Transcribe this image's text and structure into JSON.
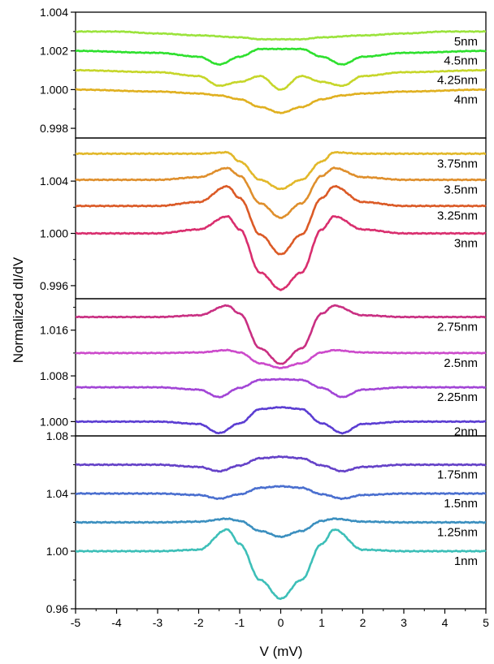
{
  "chart_data": {
    "type": "line",
    "xlabel": "V (mV)",
    "ylabel": "Normalized dI/dV",
    "xlim": [
      -5,
      5
    ],
    "xticks": [
      "-5",
      "-4",
      "-3",
      "-2",
      "-1",
      "0",
      "1",
      "2",
      "3",
      "4",
      "5"
    ],
    "panels": [
      {
        "ylim": [
          0.9975,
          1.004
        ],
        "yticks": [
          "0.998",
          "1.000",
          "1.002",
          "1.004"
        ],
        "series": [
          {
            "name": "5nm",
            "color": "#9be33c",
            "offset": 1.003,
            "x": [
              -5,
              -4,
              -3,
              -2,
              -1,
              -0.5,
              0,
              0.5,
              1,
              2,
              3,
              4,
              5
            ],
            "dy": [
              0,
              0,
              -0.0001,
              -0.0002,
              -0.0003,
              -0.0004,
              -0.0004,
              -0.0004,
              -0.0003,
              -0.0002,
              -0.0001,
              0,
              0
            ]
          },
          {
            "name": "4.5nm",
            "color": "#2ee02e",
            "offset": 1.002,
            "x": [
              -5,
              -3,
              -2,
              -1.5,
              -1,
              -0.5,
              0,
              0.5,
              1,
              1.5,
              2,
              3,
              5
            ],
            "dy": [
              0,
              -0.0001,
              -0.0003,
              -0.0007,
              -0.0003,
              0.0001,
              0.0001,
              0.0001,
              -0.0003,
              -0.0007,
              -0.0003,
              -0.0001,
              0
            ]
          },
          {
            "name": "4.25nm",
            "color": "#c6d62a",
            "offset": 1.001,
            "x": [
              -5,
              -3,
              -2,
              -1.5,
              -1,
              -0.5,
              0,
              0.5,
              1,
              1.5,
              2,
              3,
              5
            ],
            "dy": [
              0,
              -0.0001,
              -0.0003,
              -0.0008,
              -0.0006,
              -0.0003,
              -0.001,
              -0.0003,
              -0.0006,
              -0.0008,
              -0.0003,
              -0.0001,
              0
            ]
          },
          {
            "name": "4nm",
            "color": "#e0b020",
            "offset": 1.0,
            "x": [
              -5,
              -3,
              -2,
              -1.5,
              -1,
              -0.5,
              0,
              0.5,
              1,
              1.5,
              2,
              3,
              5
            ],
            "dy": [
              0,
              -0.0001,
              -0.0002,
              -0.0003,
              -0.0005,
              -0.0009,
              -0.0012,
              -0.0009,
              -0.0005,
              -0.0003,
              -0.0002,
              -0.0001,
              0
            ]
          }
        ]
      },
      {
        "ylim": [
          0.995,
          1.0073
        ],
        "yticks": [
          "0.996",
          "1.000",
          "1.004"
        ],
        "series": [
          {
            "name": "3.75nm",
            "color": "#e2b82a",
            "offset": 1.0061,
            "x": [
              -5,
              -3,
              -2,
              -1.3,
              -1,
              -0.5,
              0,
              0.5,
              1,
              1.3,
              2,
              3,
              5
            ],
            "dy": [
              0,
              0,
              0,
              0.0001,
              -0.0006,
              -0.002,
              -0.0027,
              -0.002,
              -0.0006,
              0.0001,
              0,
              0,
              0
            ]
          },
          {
            "name": "3.5nm",
            "color": "#df8f2c",
            "offset": 1.0041,
            "x": [
              -5,
              -3,
              -2,
              -1.3,
              -1,
              -0.5,
              0,
              0.5,
              1,
              1.3,
              2,
              3,
              5
            ],
            "dy": [
              0,
              0,
              0.0002,
              0.0009,
              0.0003,
              -0.0018,
              -0.0029,
              -0.0018,
              0.0003,
              0.0009,
              0.0002,
              0,
              0
            ]
          },
          {
            "name": "3.25nm",
            "color": "#db5a26",
            "offset": 1.0021,
            "x": [
              -5,
              -3,
              -2,
              -1.3,
              -1,
              -0.5,
              0,
              0.5,
              1,
              1.3,
              2,
              3,
              5
            ],
            "dy": [
              0,
              0,
              0.0003,
              0.0015,
              0.0006,
              -0.0022,
              -0.0037,
              -0.0022,
              0.0006,
              0.0015,
              0.0003,
              0,
              0
            ]
          },
          {
            "name": "3nm",
            "color": "#d92e6e",
            "offset": 1.0,
            "x": [
              -5,
              -3,
              -2,
              -1.3,
              -1,
              -0.5,
              0,
              0.5,
              1,
              1.3,
              2,
              3,
              5
            ],
            "dy": [
              0,
              0,
              0.0003,
              0.0013,
              0.0003,
              -0.003,
              -0.0043,
              -0.003,
              0.0003,
              0.0013,
              0.0003,
              0,
              0
            ]
          }
        ]
      },
      {
        "ylim": [
          0.9975,
          1.0215
        ],
        "yticks": [
          "1.000",
          "1.008",
          "1.016"
        ],
        "series": [
          {
            "name": "2.75nm",
            "color": "#c92f82",
            "offset": 1.0183,
            "x": [
              -5,
              -3,
              -2,
              -1.3,
              -1,
              -0.5,
              0,
              0.5,
              1,
              1.3,
              2,
              3,
              5
            ],
            "dy": [
              0,
              0,
              0.0003,
              0.002,
              0.0006,
              -0.0055,
              -0.0082,
              -0.0055,
              0.0006,
              0.002,
              0.0003,
              0,
              0
            ]
          },
          {
            "name": "2.5nm",
            "color": "#cc4acb",
            "offset": 1.012,
            "x": [
              -5,
              -3,
              -2,
              -1.3,
              -1,
              -0.5,
              0,
              0.5,
              1,
              1.3,
              2,
              3,
              5
            ],
            "dy": [
              0,
              0,
              0.0001,
              0.0005,
              0.0001,
              -0.0018,
              -0.0026,
              -0.0018,
              0.0001,
              0.0005,
              0.0001,
              0,
              0
            ]
          },
          {
            "name": "2.25nm",
            "color": "#a245d6",
            "offset": 1.006,
            "x": [
              -5,
              -3,
              -2,
              -1.5,
              -1,
              -0.5,
              0,
              0.5,
              1,
              1.5,
              2,
              3,
              5
            ],
            "dy": [
              0,
              0,
              -0.0004,
              -0.0017,
              -0.0001,
              0.0013,
              0.0014,
              0.0013,
              -0.0001,
              -0.0017,
              -0.0004,
              0,
              0
            ]
          },
          {
            "name": "2nm",
            "color": "#5b3dd2",
            "offset": 1.0,
            "x": [
              -5,
              -3,
              -2,
              -1.5,
              -1,
              -0.5,
              0,
              0.5,
              1,
              1.5,
              2,
              3,
              5
            ],
            "dy": [
              0,
              0,
              -0.0004,
              -0.002,
              -0.0003,
              0.0022,
              0.0025,
              0.0022,
              -0.0003,
              -0.002,
              -0.0004,
              0,
              0
            ]
          }
        ]
      },
      {
        "ylim": [
          0.96,
          1.08
        ],
        "yticks": [
          "0.96",
          "1.00",
          "1.04",
          "1.08"
        ],
        "series": [
          {
            "name": "1.75nm",
            "color": "#6542c8",
            "offset": 1.06,
            "x": [
              -5,
              -3,
              -2,
              -1.5,
              -1,
              -0.5,
              0,
              0.5,
              1,
              1.5,
              2,
              3,
              5
            ],
            "dy": [
              0,
              0,
              -0.0015,
              -0.0045,
              -0.0005,
              0.0045,
              0.0055,
              0.0045,
              -0.0005,
              -0.0045,
              -0.0015,
              0,
              0
            ]
          },
          {
            "name": "1.5nm",
            "color": "#4a6fcf",
            "offset": 1.04,
            "x": [
              -5,
              -3,
              -2,
              -1.5,
              -1,
              -0.5,
              0,
              0.5,
              1,
              1.5,
              2,
              3,
              5
            ],
            "dy": [
              0,
              0,
              -0.001,
              -0.0035,
              -0.0005,
              0.004,
              0.005,
              0.004,
              -0.0005,
              -0.0035,
              -0.001,
              0,
              0
            ]
          },
          {
            "name": "1.25nm",
            "color": "#3b8fbf",
            "offset": 1.02,
            "x": [
              -5,
              -3,
              -2,
              -1.3,
              -1,
              -0.5,
              0,
              0.5,
              1,
              1.3,
              2,
              3,
              5
            ],
            "dy": [
              0,
              0,
              0.0005,
              0.0025,
              0.001,
              -0.006,
              -0.01,
              -0.006,
              0.001,
              0.0025,
              0.0005,
              0,
              0
            ]
          },
          {
            "name": "1nm",
            "color": "#3dbfb8",
            "offset": 1.0,
            "x": [
              -5,
              -3,
              -2,
              -1.3,
              -1,
              -0.5,
              0,
              0.5,
              1,
              1.3,
              2,
              3,
              5
            ],
            "dy": [
              0,
              0,
              0.001,
              0.015,
              0.005,
              -0.02,
              -0.033,
              -0.02,
              0.005,
              0.015,
              0.001,
              0,
              0
            ]
          }
        ]
      }
    ]
  }
}
